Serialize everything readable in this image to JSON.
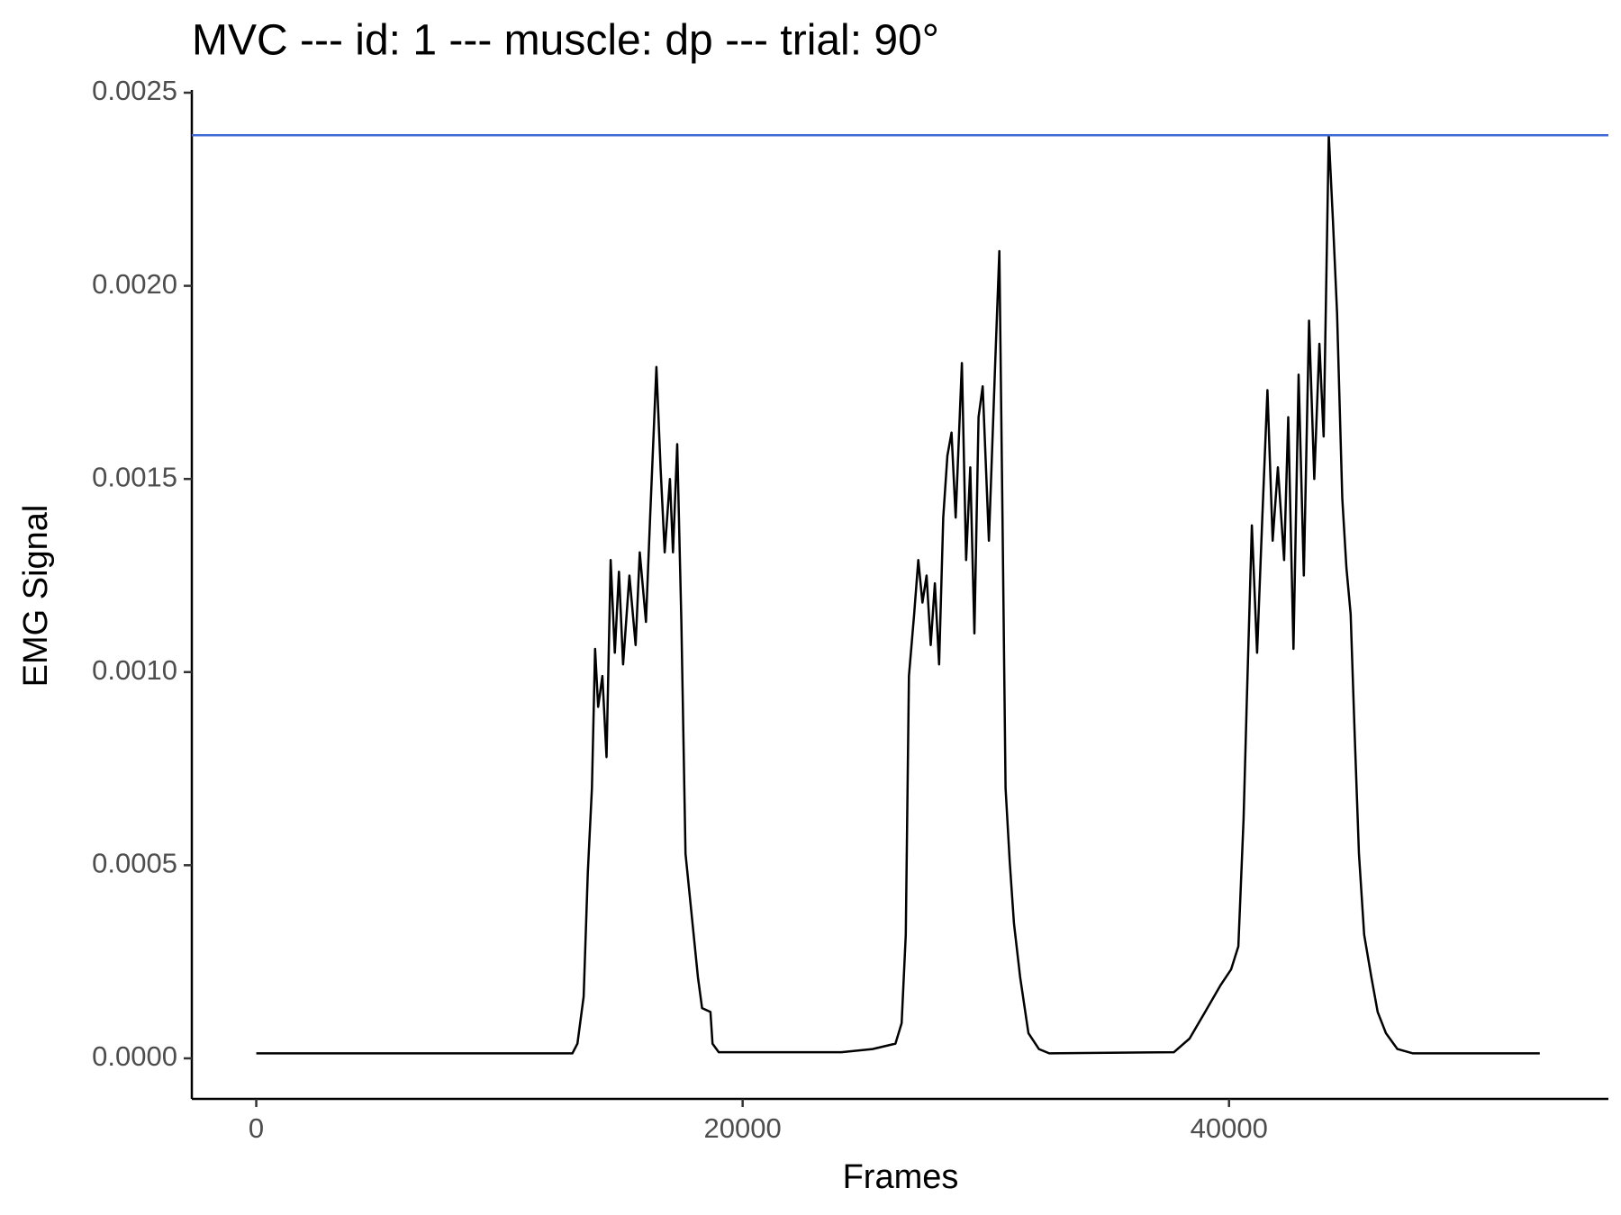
{
  "chart_data": {
    "type": "line",
    "title": "MVC --- id: 1 --- muscle: dp --- trial: 90°",
    "x_label": "Frames",
    "y_label": "EMG Signal",
    "color": "#000000",
    "x": [
      0,
      13000,
      13205,
      13462,
      13632,
      13803,
      13932,
      14060,
      14231,
      14402,
      14573,
      14744,
      14915,
      15085,
      15342,
      15598,
      15769,
      16026,
      16197,
      16453,
      16624,
      16795,
      17009,
      17137,
      17308,
      17479,
      17650,
      17906,
      18162,
      18333,
      18675,
      18761,
      19017,
      24060,
      25342,
      26282,
      26538,
      26709,
      26838,
      27051,
      27222,
      27393,
      27564,
      27735,
      27906,
      28077,
      28248,
      28419,
      28590,
      28761,
      29017,
      29188,
      29359,
      29530,
      29701,
      29872,
      30128,
      30385,
      30556,
      30684,
      30812,
      30983,
      31154,
      31410,
      31752,
      32180,
      32607,
      37735,
      38376,
      39017,
      39658,
      40085,
      40384,
      40598,
      40726,
      40940,
      41154,
      41368,
      41581,
      41795,
      42009,
      42265,
      42436,
      42650,
      42863,
      43077,
      43291,
      43504,
      43718,
      43889,
      44103,
      44274,
      44444,
      44658,
      44829,
      45000,
      45171,
      45342,
      45556,
      45855,
      46111,
      46453,
      46923,
      47564,
      52778
    ],
    "values": [
      1.3e-05,
      1.3e-05,
      3.8e-05,
      0.00016,
      0.00048,
      0.0007,
      0.00106,
      0.00091,
      0.00099,
      0.00078,
      0.00129,
      0.00105,
      0.00126,
      0.00102,
      0.00125,
      0.00107,
      0.00131,
      0.00113,
      0.0014,
      0.00179,
      0.00153,
      0.00131,
      0.0015,
      0.00131,
      0.00159,
      0.00113,
      0.00053,
      0.00037,
      0.00021,
      0.00013,
      0.00012,
      3.8e-05,
      1.6e-05,
      1.6e-05,
      2.4e-05,
      3.8e-05,
      9.1e-05,
      0.00032,
      0.00099,
      0.00115,
      0.00129,
      0.00118,
      0.00125,
      0.00107,
      0.00123,
      0.00102,
      0.0014,
      0.00156,
      0.00162,
      0.0014,
      0.0018,
      0.00129,
      0.00153,
      0.0011,
      0.00166,
      0.00174,
      0.00134,
      0.0018,
      0.00209,
      0.0014,
      0.0007,
      0.00051,
      0.00035,
      0.00021,
      6.5e-05,
      2.4e-05,
      1.3e-05,
      1.6e-05,
      5.1e-05,
      0.00012,
      0.00019,
      0.00023,
      0.00029,
      0.00062,
      0.00091,
      0.00138,
      0.00105,
      0.0014,
      0.00173,
      0.00134,
      0.00153,
      0.00129,
      0.00166,
      0.00106,
      0.00177,
      0.00125,
      0.00191,
      0.0015,
      0.00185,
      0.00161,
      0.00239,
      0.00217,
      0.00193,
      0.00145,
      0.00127,
      0.00115,
      0.00083,
      0.00053,
      0.00032,
      0.00021,
      0.00012,
      6.5e-05,
      2.4e-05,
      1.3e-05,
      1.3e-05
    ],
    "hline": 0.00239,
    "hline_color": "#3e68d6",
    "xlim": [
      -2650,
      55600
    ],
    "ylim": [
      -0.000105,
      0.0025
    ],
    "xticks": [
      0,
      20000,
      40000
    ],
    "yticks": [
      {
        "value": 0,
        "label": "0.0000"
      },
      0.0005,
      {
        "value": 0.001,
        "label": "0.0010"
      },
      0.0015,
      {
        "value": 0.002,
        "label": "0.0020"
      },
      0.0025
    ]
  }
}
